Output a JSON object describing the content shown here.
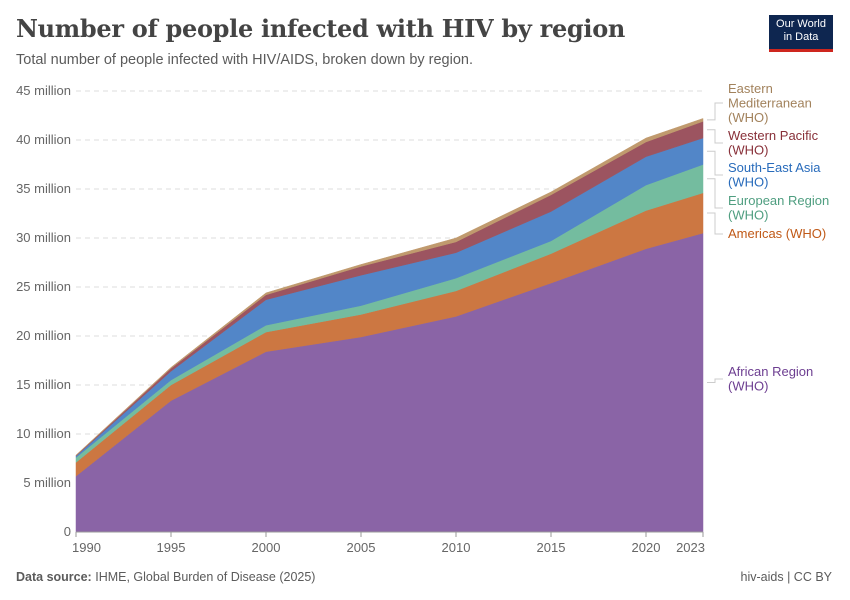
{
  "title": "Number of people infected with HIV by region",
  "subtitle": "Total number of people infected with HIV/AIDS, broken down by region.",
  "logo": [
    "Our World",
    "in Data"
  ],
  "footer": {
    "source_label": "Data source:",
    "source": "IHME, Global Burden of Disease (2025)",
    "license": "hiv-aids | CC BY"
  },
  "chart_data": {
    "type": "area",
    "stacked": true,
    "title": "Number of people infected with HIV by region",
    "xlabel": "",
    "ylabel": "",
    "x": [
      1990,
      1995,
      2000,
      2005,
      2010,
      2015,
      2020,
      2023
    ],
    "xlim": [
      1990,
      2023
    ],
    "ylim": [
      0,
      45000000
    ],
    "x_ticks": [
      "1990",
      "1995",
      "2000",
      "2005",
      "2010",
      "2015",
      "2020",
      "2023"
    ],
    "y_ticks": [
      "0",
      "5 million",
      "10 million",
      "15 million",
      "20 million",
      "25 million",
      "30 million",
      "35 million",
      "40 million",
      "45 million"
    ],
    "y_tick_values": [
      0,
      5000000,
      10000000,
      15000000,
      20000000,
      25000000,
      30000000,
      35000000,
      40000000,
      45000000
    ],
    "grid": "horizontal dashed",
    "legend": "right, inline labels",
    "series": [
      {
        "name": "African Region (WHO)",
        "label_lines": [
          "African Region",
          "(WHO)"
        ],
        "color": "#8a64a6",
        "text_color": "#6d3e91",
        "values": [
          5700000,
          13400000,
          18400000,
          19900000,
          22000000,
          25400000,
          28900000,
          30500000
        ]
      },
      {
        "name": "Americas (WHO)",
        "label_lines": [
          "Americas (WHO)"
        ],
        "color": "#cc7742",
        "text_color": "#c05917",
        "values": [
          1400000,
          1600000,
          2000000,
          2300000,
          2600000,
          3000000,
          3900000,
          4100000
        ]
      },
      {
        "name": "European Region (WHO)",
        "label_lines": [
          "European Region",
          "(WHO)"
        ],
        "color": "#74bc9f",
        "text_color": "#4f9e80",
        "values": [
          500000,
          500000,
          700000,
          900000,
          1300000,
          1300000,
          2600000,
          2900000
        ]
      },
      {
        "name": "South-East Asia (WHO)",
        "label_lines": [
          "South-East Asia",
          "(WHO)"
        ],
        "color": "#5286c8",
        "text_color": "#286bbb",
        "values": [
          150000,
          900000,
          2600000,
          3100000,
          2600000,
          3000000,
          2900000,
          2700000
        ]
      },
      {
        "name": "Western Pacific (WHO)",
        "label_lines": [
          "Western Pacific",
          "(WHO)"
        ],
        "color": "#9c5460",
        "text_color": "#883039",
        "values": [
          50000,
          300000,
          500000,
          900000,
          1100000,
          1700000,
          1500000,
          1700000
        ]
      },
      {
        "name": "Eastern Mediterranean (WHO)",
        "label_lines": [
          "Eastern",
          "Mediterranean",
          "(WHO)"
        ],
        "color": "#c09a6e",
        "text_color": "#a2825c",
        "values": [
          50000,
          100000,
          200000,
          200000,
          400000,
          300000,
          400000,
          300000
        ]
      }
    ]
  }
}
